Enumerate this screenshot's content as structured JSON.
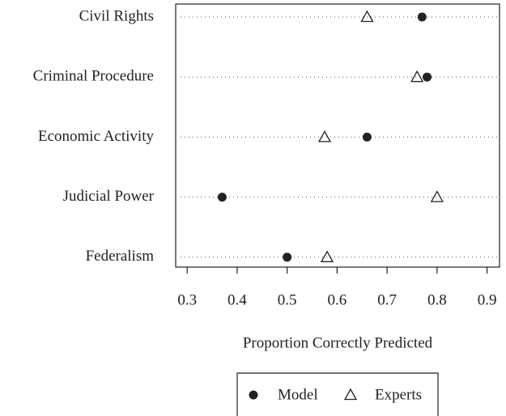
{
  "chart_data": {
    "type": "dot",
    "xlabel": "Proportion Correctly Predicted",
    "categories": [
      "Civil Rights",
      "Criminal Procedure",
      "Economic Activity",
      "Judicial Power",
      "Federalism"
    ],
    "series": [
      {
        "name": "Model",
        "color": "#222222",
        "marker": "circle",
        "values": [
          0.77,
          0.78,
          0.66,
          0.37,
          0.5
        ]
      },
      {
        "name": "Experts",
        "color": "#222222",
        "marker": "triangle",
        "values": [
          0.66,
          0.76,
          0.575,
          0.8,
          0.58
        ]
      }
    ],
    "xlim": [
      0.277,
      0.925
    ],
    "xticks": [
      0.3,
      0.4,
      0.5,
      0.6,
      0.7,
      0.8,
      0.9
    ],
    "grid": true
  }
}
